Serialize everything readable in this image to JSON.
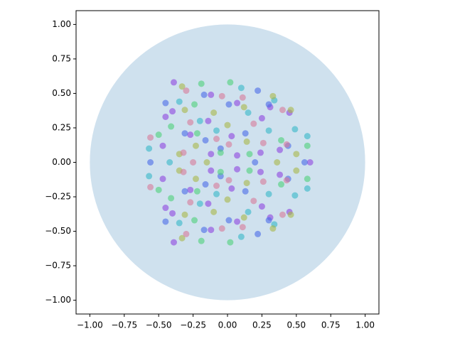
{
  "chart_data": {
    "type": "scatter",
    "xlim": [
      -1.1,
      1.1
    ],
    "ylim": [
      -1.1,
      1.1
    ],
    "xticks": [
      {
        "value": -1,
        "label": "−1.00"
      },
      {
        "value": -0.75,
        "label": "−0.75"
      },
      {
        "value": -0.5,
        "label": "−0.50"
      },
      {
        "value": -0.25,
        "label": "−0.25"
      },
      {
        "value": 0,
        "label": "0.00"
      },
      {
        "value": 0.25,
        "label": "0.25"
      },
      {
        "value": 0.5,
        "label": "0.50"
      },
      {
        "value": 0.75,
        "label": "0.75"
      },
      {
        "value": 1,
        "label": "1.00"
      }
    ],
    "yticks": [
      {
        "value": -1,
        "label": "−1.00"
      },
      {
        "value": -0.75,
        "label": "−0.75"
      },
      {
        "value": -0.5,
        "label": "−0.50"
      },
      {
        "value": -0.25,
        "label": "−0.25"
      },
      {
        "value": 0,
        "label": "0.00"
      },
      {
        "value": 0.25,
        "label": "0.25"
      },
      {
        "value": 0.5,
        "label": "0.50"
      },
      {
        "value": 0.75,
        "label": "0.75"
      },
      {
        "value": 1,
        "label": "1.00"
      }
    ],
    "circle": {
      "center": [
        0,
        0
      ],
      "radius": 1,
      "color": "#cfe1ee"
    },
    "series": [
      {
        "color": "#8e44e0",
        "x": [
          -0.39,
          -0.12,
          0.07,
          0.31,
          -0.4,
          -0.14,
          0.25,
          -0.27,
          0.03,
          0.45,
          -0.45,
          0.07,
          -0.12,
          0.38,
          0.24,
          -0.47,
          -0.39,
          -0.12,
          0.07,
          0.31,
          -0.4,
          -0.14,
          0.25,
          -0.27,
          0.03,
          0.45,
          -0.45,
          0.07,
          -0.12,
          0.38,
          0.24,
          -0.47,
          0.6
        ],
        "y": [
          0.58,
          0.49,
          0.43,
          0.4,
          0.37,
          0.3,
          0.32,
          0.2,
          0.19,
          0.36,
          0.33,
          0.05,
          0.06,
          0.09,
          0.07,
          0.12,
          -0.58,
          -0.49,
          -0.43,
          -0.4,
          -0.37,
          -0.3,
          -0.32,
          -0.2,
          -0.19,
          -0.36,
          -0.33,
          -0.05,
          -0.06,
          -0.09,
          -0.07,
          -0.12,
          0
        ]
      },
      {
        "color": "#4a6be8",
        "x": [
          0.22,
          -0.17,
          -0.45,
          0.01,
          -0.31,
          0.13,
          -0.16,
          0.44,
          0.3,
          -0.05,
          0.22,
          -0.17,
          -0.45,
          0.01,
          -0.31,
          0.13,
          -0.16,
          0.44,
          0.3,
          -0.05,
          0.56,
          -0.56,
          0.2
        ],
        "y": [
          0.52,
          0.49,
          0.43,
          0.42,
          0.21,
          0.21,
          0.16,
          0.12,
          0.42,
          0.1,
          -0.52,
          -0.49,
          -0.43,
          -0.42,
          -0.21,
          -0.21,
          -0.16,
          -0.12,
          -0.42,
          -0.1,
          0,
          0,
          0
        ]
      },
      {
        "color": "#35b8c8",
        "x": [
          0.1,
          0.34,
          -0.35,
          -0.57,
          0.58,
          0.15,
          -0.2,
          0.49,
          -0.08,
          0.3,
          0.1,
          0.34,
          -0.35,
          -0.57,
          0.58,
          0.15,
          -0.2,
          0.49,
          -0.08,
          0.3,
          -0.42
        ],
        "y": [
          0.54,
          0.45,
          0.44,
          0.1,
          0.19,
          0.36,
          0.3,
          0.24,
          0.23,
          0.23,
          -0.54,
          -0.45,
          -0.44,
          -0.1,
          -0.19,
          -0.36,
          -0.3,
          -0.24,
          -0.23,
          -0.23,
          0
        ]
      },
      {
        "color": "#4cd17a",
        "x": [
          -0.19,
          0.02,
          -0.41,
          0.39,
          -0.24,
          0.58,
          -0.22,
          -0.05,
          0.16,
          -0.5,
          -0.19,
          0.02,
          -0.41,
          0.39,
          -0.24,
          0.58,
          -0.22,
          -0.05,
          0.16,
          -0.5
        ],
        "y": [
          0.57,
          0.58,
          0.26,
          0.16,
          0.42,
          0.12,
          0.21,
          0.07,
          0.06,
          0.2,
          -0.57,
          -0.58,
          -0.26,
          -0.16,
          -0.42,
          -0.12,
          -0.21,
          -0.07,
          -0.06,
          -0.2
        ]
      },
      {
        "color": "#a8b84a",
        "x": [
          -0.33,
          0.33,
          -0.31,
          0.46,
          -0.1,
          0.12,
          -0.23,
          -0.35,
          0.5,
          0.0,
          0.14,
          -0.33,
          0.33,
          -0.31,
          0.46,
          -0.1,
          0.12,
          -0.23,
          -0.35,
          0.5,
          0.0,
          0.14,
          0.36,
          -0.15
        ],
        "y": [
          0.55,
          0.48,
          0.38,
          0.38,
          0.36,
          0.4,
          0.12,
          0.06,
          0.06,
          0.27,
          0.15,
          -0.55,
          -0.48,
          -0.38,
          -0.38,
          -0.36,
          -0.4,
          -0.12,
          -0.06,
          -0.06,
          -0.27,
          -0.15,
          0,
          0
        ]
      },
      {
        "color": "#d77a9a",
        "x": [
          -0.56,
          -0.3,
          -0.04,
          0.11,
          -0.27,
          0.19,
          -0.08,
          0.26,
          -0.32,
          0.43,
          0.01,
          0.4,
          -0.56,
          -0.3,
          -0.04,
          0.11,
          -0.27,
          0.19,
          -0.08,
          0.26,
          -0.32,
          0.43,
          0.01,
          0.4,
          -0.25
        ],
        "y": [
          0.18,
          0.52,
          0.48,
          0.47,
          0.29,
          0.28,
          0.17,
          0.14,
          0.07,
          0.13,
          0.13,
          0.38,
          -0.18,
          -0.52,
          -0.48,
          -0.47,
          -0.29,
          -0.28,
          -0.17,
          -0.14,
          -0.07,
          -0.13,
          -0.13,
          -0.38,
          0
        ]
      }
    ]
  }
}
